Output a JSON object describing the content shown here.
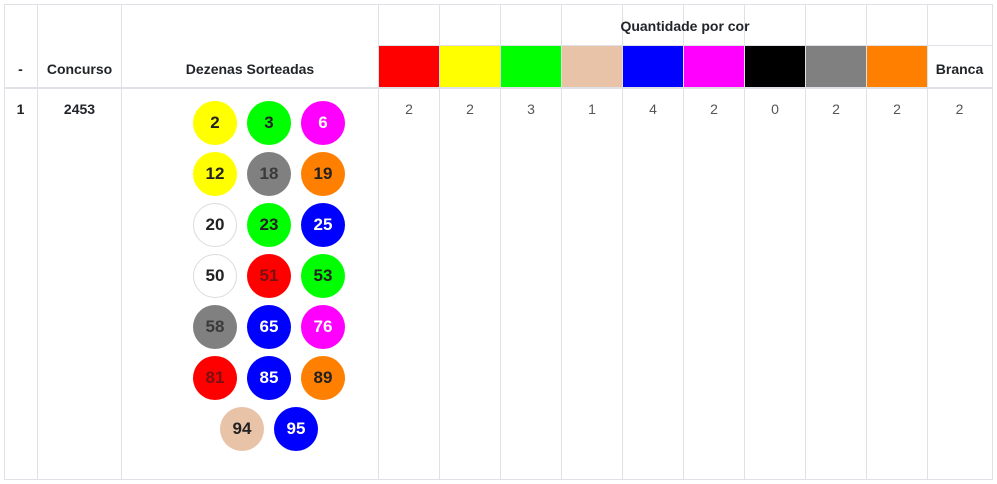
{
  "header": {
    "dash": "-",
    "concurso": "Concurso",
    "dezenas": "Dezenas Sorteadas",
    "quantidade": "Quantidade por cor",
    "branca": "Branca"
  },
  "colors": [
    {
      "name": "red",
      "hex": "#ff0000"
    },
    {
      "name": "yellow",
      "hex": "#ffff00"
    },
    {
      "name": "green",
      "hex": "#00ff00"
    },
    {
      "name": "beige",
      "hex": "#e8c3a8"
    },
    {
      "name": "blue",
      "hex": "#0000ff"
    },
    {
      "name": "magenta",
      "hex": "#ff00ff"
    },
    {
      "name": "black",
      "hex": "#000000"
    },
    {
      "name": "gray",
      "hex": "#808080"
    },
    {
      "name": "orange",
      "hex": "#ff7f00"
    }
  ],
  "row": {
    "index": "1",
    "concurso": "2453",
    "counts": [
      "2",
      "2",
      "3",
      "1",
      "4",
      "2",
      "0",
      "2",
      "2",
      "2"
    ],
    "balls": [
      {
        "n": "2",
        "color": "yellow"
      },
      {
        "n": "3",
        "color": "green"
      },
      {
        "n": "6",
        "color": "magenta"
      },
      {
        "n": "12",
        "color": "yellow"
      },
      {
        "n": "18",
        "color": "gray"
      },
      {
        "n": "19",
        "color": "orange"
      },
      {
        "n": "20",
        "color": "white"
      },
      {
        "n": "23",
        "color": "green"
      },
      {
        "n": "25",
        "color": "blue"
      },
      {
        "n": "50",
        "color": "white"
      },
      {
        "n": "51",
        "color": "red"
      },
      {
        "n": "53",
        "color": "green"
      },
      {
        "n": "58",
        "color": "gray"
      },
      {
        "n": "65",
        "color": "blue"
      },
      {
        "n": "76",
        "color": "magenta"
      },
      {
        "n": "81",
        "color": "red"
      },
      {
        "n": "85",
        "color": "blue"
      },
      {
        "n": "89",
        "color": "orange"
      },
      {
        "n": "94",
        "color": "beige"
      },
      {
        "n": "95",
        "color": "blue"
      }
    ]
  }
}
